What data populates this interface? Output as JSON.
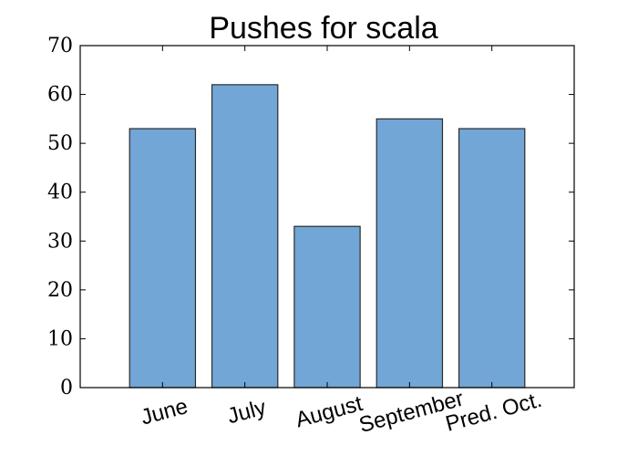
{
  "chart_data": {
    "type": "bar",
    "title": "Pushes for scala",
    "categories": [
      "June",
      "July",
      "August",
      "September",
      "Pred. Oct."
    ],
    "values": [
      53,
      62,
      33,
      55,
      53
    ],
    "xlabel": "",
    "ylabel": "",
    "ylim": [
      0,
      70
    ],
    "yticks": [
      "0",
      "10",
      "20",
      "30",
      "40",
      "50",
      "60",
      "70"
    ],
    "grid": false,
    "bar_color": "#71a6d6",
    "edge_color": "#2b2b2b"
  }
}
